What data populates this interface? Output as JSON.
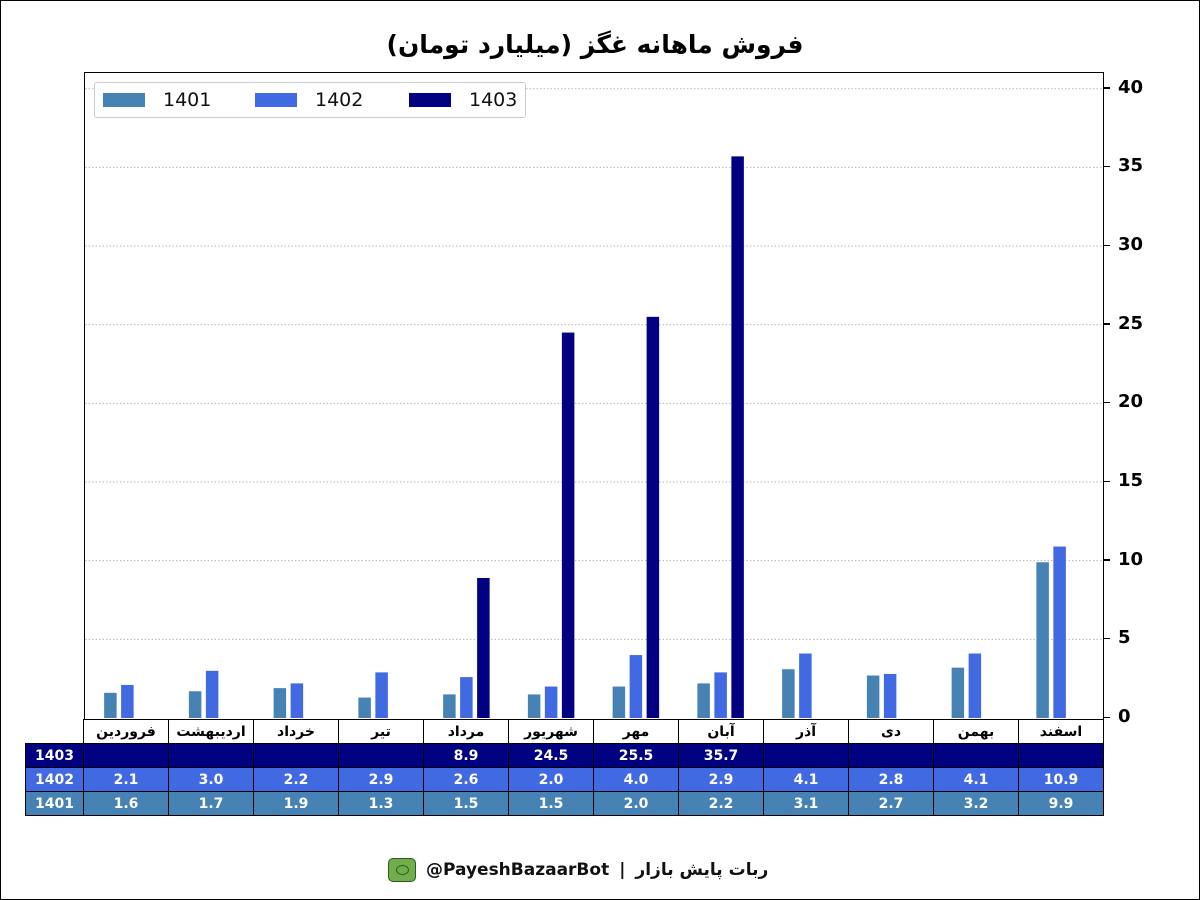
{
  "chart_data": {
    "type": "bar",
    "title": "فروش ماهانه غگز (میلیارد تومان)",
    "categories": [
      "فروردین",
      "اردیبهشت",
      "خرداد",
      "تیر",
      "مرداد",
      "شهریور",
      "مهر",
      "آبان",
      "آذر",
      "دی",
      "بهمن",
      "اسفند"
    ],
    "series": [
      {
        "name": "1401",
        "color": "#4682b4",
        "values": [
          1.6,
          1.7,
          1.9,
          1.3,
          1.5,
          1.5,
          2.0,
          2.2,
          3.1,
          2.7,
          3.2,
          9.9
        ]
      },
      {
        "name": "1402",
        "color": "#4169e1",
        "values": [
          2.1,
          3.0,
          2.2,
          2.9,
          2.6,
          2.0,
          4.0,
          2.9,
          4.1,
          2.8,
          4.1,
          10.9
        ]
      },
      {
        "name": "1403",
        "color": "#000080",
        "values": [
          null,
          null,
          null,
          null,
          8.9,
          24.5,
          25.5,
          35.7,
          null,
          null,
          null,
          null
        ]
      }
    ],
    "ylim": [
      0,
      41
    ],
    "yticks": [
      0,
      5,
      10,
      15,
      20,
      25,
      30,
      35,
      40
    ],
    "y_axis_side": "right",
    "grid": "horizontal dotted",
    "legend_position": "top-left"
  },
  "footer": {
    "bot_name": "ربات پایش بازار",
    "separator": "|",
    "handle": "@PayeshBazaarBot",
    "icon": "bot-icon"
  }
}
